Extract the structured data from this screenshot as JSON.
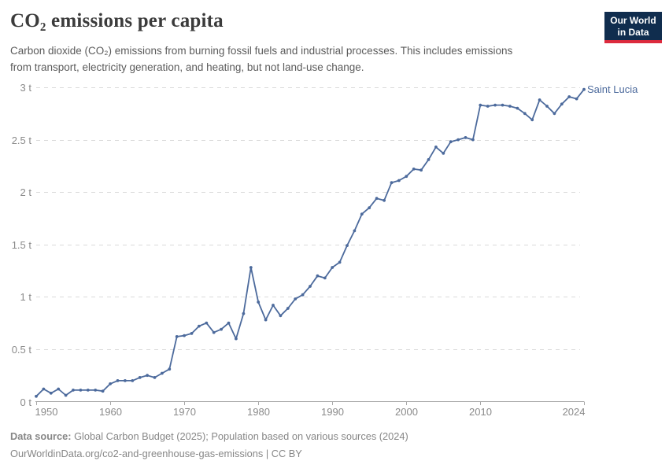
{
  "header": {
    "title": "CO₂ emissions per capita",
    "subtitle_line1": "Carbon dioxide (CO₂) emissions from burning fossil fuels and industrial processes. This includes emissions",
    "subtitle_line2": "from transport, electricity generation, and heating, but not land-use change."
  },
  "logo": {
    "line1": "Our World",
    "line2": "in Data"
  },
  "chart_data": {
    "type": "line",
    "title": "CO₂ emissions per capita",
    "unit": "t",
    "end_label": "Saint Lucia",
    "xlim": [
      1950,
      2024
    ],
    "ylim": [
      0,
      3
    ],
    "yticks": [
      0,
      0.5,
      1,
      1.5,
      2,
      2.5,
      3
    ],
    "ytick_labels": [
      "0 t",
      "0.5 t",
      "1 t",
      "1.5 t",
      "2 t",
      "2.5 t",
      "3 t"
    ],
    "xticks": [
      1950,
      1960,
      1970,
      1980,
      1990,
      2000,
      2010,
      2024
    ],
    "xtick_labels": [
      "1950",
      "1960",
      "1970",
      "1980",
      "1990",
      "2000",
      "2010",
      "2024"
    ],
    "grid": "horizontal-dashed",
    "legend_position": "end-of-line",
    "series": [
      {
        "name": "Saint Lucia",
        "color": "#4C6A9C",
        "x": [
          1950,
          1951,
          1952,
          1953,
          1954,
          1955,
          1956,
          1957,
          1958,
          1959,
          1960,
          1961,
          1962,
          1963,
          1964,
          1965,
          1966,
          1967,
          1968,
          1969,
          1970,
          1971,
          1972,
          1973,
          1974,
          1975,
          1976,
          1977,
          1978,
          1979,
          1980,
          1981,
          1982,
          1983,
          1984,
          1985,
          1986,
          1987,
          1988,
          1989,
          1990,
          1991,
          1992,
          1993,
          1994,
          1995,
          1996,
          1997,
          1998,
          1999,
          2000,
          2001,
          2002,
          2003,
          2004,
          2005,
          2006,
          2007,
          2008,
          2009,
          2010,
          2011,
          2012,
          2013,
          2014,
          2015,
          2016,
          2017,
          2018,
          2019,
          2020,
          2021,
          2022,
          2023,
          2024
        ],
        "values": [
          0.05,
          0.12,
          0.08,
          0.12,
          0.06,
          0.11,
          0.11,
          0.11,
          0.11,
          0.1,
          0.17,
          0.2,
          0.2,
          0.2,
          0.23,
          0.25,
          0.23,
          0.27,
          0.31,
          0.62,
          0.63,
          0.65,
          0.72,
          0.75,
          0.66,
          0.69,
          0.75,
          0.6,
          0.84,
          1.28,
          0.95,
          0.78,
          0.92,
          0.82,
          0.89,
          0.98,
          1.02,
          1.1,
          1.2,
          1.18,
          1.28,
          1.33,
          1.49,
          1.63,
          1.79,
          1.85,
          1.94,
          1.92,
          2.09,
          2.11,
          2.15,
          2.22,
          2.21,
          2.31,
          2.43,
          2.37,
          2.48,
          2.5,
          2.52,
          2.5,
          2.83,
          2.82,
          2.83,
          2.83,
          2.82,
          2.8,
          2.75,
          2.69,
          2.88,
          2.82,
          2.75,
          2.84,
          2.91,
          2.89,
          2.98
        ]
      }
    ]
  },
  "footer": {
    "data_source_label": "Data source:",
    "data_source_text": " Global Carbon Budget (2025); Population based on various sources (2024)",
    "citation": "OurWorldinData.org/co2-and-greenhouse-gas-emissions | CC BY"
  },
  "colors": {
    "series_line": "#4C6A9C",
    "end_label": "#4C6A9C",
    "gridline": "#dadada",
    "axis_line": "#a8a8a8",
    "tick_label": "#8a8a8a",
    "logo_bg": "#102d4e",
    "logo_bar": "#dc2a3d"
  }
}
